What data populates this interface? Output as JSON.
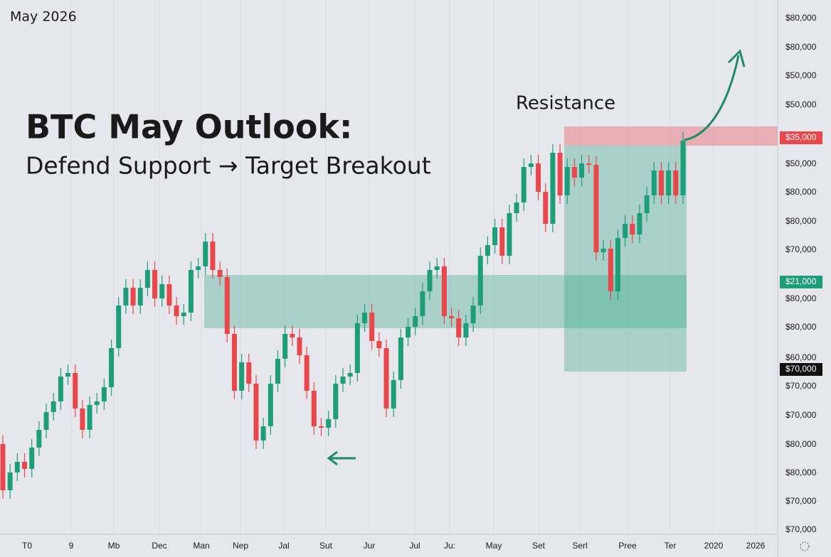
{
  "chart_data": {
    "type": "candlestick",
    "date_label": "May 2026",
    "title": "BTC May Outlook:",
    "subtitle": "Defend Support → Target Breakout",
    "annotation": "Resistance",
    "up_color": "#1e9e78",
    "down_color": "#e8474b",
    "ylim": [
      0,
      760
    ],
    "x_labels": [
      "T0",
      "9",
      "Mb",
      "Dec",
      "Man",
      "Nep",
      "Jal",
      "Sut",
      "Jur",
      "Jul",
      "Ju:",
      "May",
      "Set",
      "Serl",
      "Pree",
      "Ter",
      "2020",
      "2026"
    ],
    "price_labels": [
      "$80,000",
      "$80,000",
      "$50,000",
      "$50,000",
      "$50,000",
      "$80,000",
      "$80,000",
      "$70,000",
      "$80,000",
      "$80,000",
      "$60,000",
      "$70,000",
      "$70,000",
      "$80,000",
      "$80,000",
      "$70,000",
      "$70,000"
    ],
    "price_highlights": [
      {
        "label": "$35,000",
        "color": "#e8474b"
      },
      {
        "label": "$21,000",
        "color": "#1e9e78"
      },
      {
        "label": "$70,000",
        "color": "#111111"
      }
    ],
    "zones": [
      {
        "low": 298,
        "high": 373,
        "color": "#1e9e78"
      },
      {
        "low": 237,
        "high": 555,
        "color": "#1e9e78"
      },
      {
        "low": 555,
        "high": 582,
        "color": "#e8474b"
      }
    ],
    "open": [
      135,
      70,
      95,
      110,
      100,
      130,
      155,
      180,
      195,
      230,
      235,
      185,
      155,
      190,
      195,
      215,
      270,
      330,
      355,
      330,
      355,
      380,
      340,
      360,
      330,
      315,
      320,
      380,
      385,
      420,
      380,
      370,
      290,
      210,
      250,
      220,
      140,
      160,
      220,
      255,
      290,
      285,
      260,
      210,
      160,
      158,
      170,
      220,
      230,
      235,
      305,
      320,
      280,
      270,
      185,
      225,
      285,
      300,
      315,
      350,
      380,
      385,
      315,
      312,
      285,
      305,
      330,
      400,
      415,
      440,
      400,
      460,
      475,
      525,
      530,
      490,
      445,
      545,
      485,
      525,
      510,
      530,
      528,
      405,
      410,
      350,
      425,
      445,
      430,
      460,
      485,
      520,
      485,
      520,
      485
    ],
    "high": [
      147,
      107,
      122,
      122,
      142,
      167,
      192,
      207,
      242,
      247,
      247,
      197,
      202,
      207,
      227,
      282,
      342,
      367,
      367,
      367,
      392,
      392,
      372,
      372,
      342,
      332,
      392,
      397,
      432,
      432,
      392,
      382,
      302,
      262,
      262,
      232,
      172,
      232,
      267,
      302,
      302,
      297,
      272,
      222,
      172,
      182,
      232,
      242,
      247,
      317,
      332,
      332,
      292,
      282,
      237,
      297,
      312,
      327,
      362,
      392,
      397,
      397,
      327,
      324,
      317,
      342,
      412,
      427,
      452,
      452,
      472,
      487,
      537,
      542,
      542,
      502,
      557,
      557,
      537,
      537,
      542,
      542,
      540,
      422,
      422,
      437,
      457,
      457,
      472,
      497,
      532,
      532,
      532,
      532,
      574
    ],
    "low": [
      58,
      58,
      83,
      88,
      88,
      118,
      143,
      168,
      183,
      218,
      173,
      143,
      143,
      178,
      183,
      203,
      258,
      318,
      318,
      318,
      343,
      328,
      328,
      318,
      303,
      303,
      308,
      368,
      373,
      368,
      358,
      278,
      198,
      198,
      208,
      128,
      128,
      148,
      208,
      243,
      273,
      248,
      198,
      148,
      146,
      146,
      158,
      208,
      218,
      223,
      293,
      268,
      258,
      173,
      173,
      213,
      273,
      288,
      303,
      338,
      368,
      303,
      300,
      273,
      273,
      293,
      318,
      388,
      403,
      388,
      388,
      448,
      463,
      513,
      478,
      433,
      433,
      473,
      473,
      498,
      498,
      516,
      393,
      393,
      338,
      338,
      413,
      418,
      418,
      448,
      473,
      473,
      473,
      473,
      473
    ],
    "close": [
      70,
      95,
      110,
      100,
      130,
      155,
      180,
      195,
      230,
      235,
      185,
      155,
      190,
      195,
      215,
      270,
      330,
      355,
      330,
      355,
      380,
      340,
      360,
      330,
      315,
      320,
      380,
      385,
      420,
      380,
      370,
      290,
      210,
      250,
      220,
      140,
      160,
      220,
      255,
      290,
      285,
      260,
      210,
      160,
      158,
      170,
      220,
      230,
      235,
      305,
      320,
      280,
      270,
      185,
      225,
      285,
      300,
      315,
      350,
      380,
      385,
      315,
      312,
      285,
      305,
      330,
      400,
      415,
      440,
      400,
      460,
      475,
      525,
      530,
      490,
      445,
      545,
      485,
      525,
      510,
      530,
      528,
      405,
      410,
      350,
      425,
      445,
      430,
      460,
      485,
      520,
      485,
      520,
      485,
      562
    ]
  }
}
